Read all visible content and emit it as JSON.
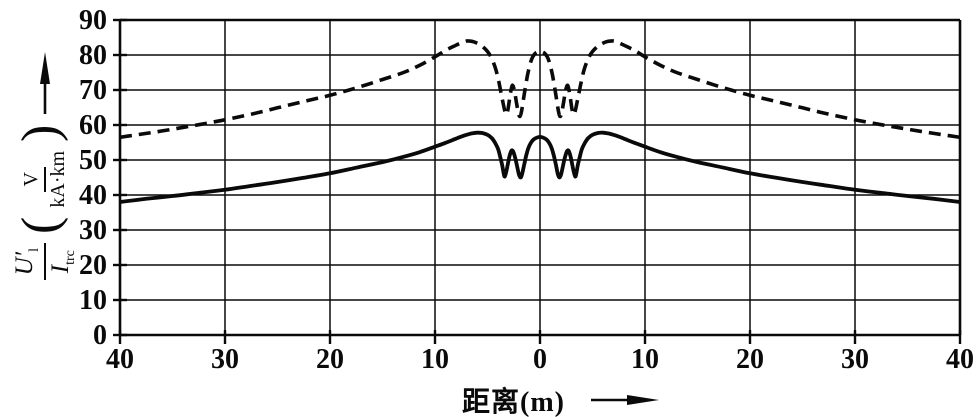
{
  "figure": {
    "background": "#ffffff",
    "ink_color": "#0a0a0a"
  },
  "y_axis_label": {
    "numerator_main": "U′",
    "numerator_sub": "l",
    "denominator_main": "I",
    "denominator_sub": "trc",
    "open_paren": "(",
    "unit_numerator": "V",
    "unit_denominator": "kA·km",
    "close_paren": ")"
  },
  "chart_data": {
    "type": "line",
    "title": "",
    "xlabel": "距离(m)",
    "ylabel": "U′l/Itrc (V/(kA·km))",
    "x_domain": [
      -40,
      40
    ],
    "ylim": [
      0,
      90
    ],
    "grid": true,
    "legend": "none",
    "x_tick_positions": [
      -40,
      -30,
      -20,
      -10,
      0,
      10,
      20,
      30,
      40
    ],
    "x_tick_labels": [
      "40",
      "30",
      "20",
      "10",
      "0",
      "10",
      "20",
      "30",
      "40"
    ],
    "y_ticks": [
      0,
      10,
      20,
      30,
      40,
      50,
      60,
      70,
      80,
      90
    ],
    "series": [
      {
        "name": "upper-dashed",
        "style": "dashed",
        "points": [
          [
            -40,
            56.5
          ],
          [
            -37.5,
            57.6
          ],
          [
            -35,
            58.8
          ],
          [
            -32.5,
            60.1
          ],
          [
            -30,
            61.5
          ],
          [
            -27.5,
            63.1
          ],
          [
            -25,
            64.9
          ],
          [
            -22.5,
            66.7
          ],
          [
            -20,
            68.5
          ],
          [
            -17.5,
            70.6
          ],
          [
            -15,
            73
          ],
          [
            -13,
            75
          ],
          [
            -11.5,
            77
          ],
          [
            -10,
            79.5
          ],
          [
            -9,
            81.3
          ],
          [
            -8,
            82.8
          ],
          [
            -7.5,
            83.5
          ],
          [
            -7,
            84
          ],
          [
            -6.5,
            83.9
          ],
          [
            -6,
            83.4
          ],
          [
            -5.5,
            82.5
          ],
          [
            -5,
            81
          ],
          [
            -4.6,
            79
          ],
          [
            -4.2,
            75.8
          ],
          [
            -3.9,
            72
          ],
          [
            -3.6,
            67.5
          ],
          [
            -3.35,
            64
          ],
          [
            -3.2,
            63
          ],
          [
            -3.05,
            64.5
          ],
          [
            -2.85,
            68.5
          ],
          [
            -2.65,
            71.3
          ],
          [
            -2.45,
            70
          ],
          [
            -2.25,
            66.5
          ],
          [
            -2.05,
            63.2
          ],
          [
            -1.9,
            62.5
          ],
          [
            -1.75,
            64
          ],
          [
            -1.55,
            67.8
          ],
          [
            -1.35,
            71.5
          ],
          [
            -1.15,
            74.8
          ],
          [
            -0.9,
            77.8
          ],
          [
            -0.65,
            79.7
          ],
          [
            -0.35,
            80.7
          ],
          [
            0,
            81
          ],
          [
            0.35,
            80.7
          ],
          [
            0.65,
            79.7
          ],
          [
            0.9,
            77.8
          ],
          [
            1.15,
            74.8
          ],
          [
            1.35,
            71.5
          ],
          [
            1.55,
            67.8
          ],
          [
            1.75,
            64
          ],
          [
            1.9,
            62.5
          ],
          [
            2.05,
            63.2
          ],
          [
            2.25,
            66.5
          ],
          [
            2.45,
            70
          ],
          [
            2.65,
            71.3
          ],
          [
            2.85,
            68.5
          ],
          [
            3.05,
            64.5
          ],
          [
            3.2,
            63
          ],
          [
            3.35,
            64
          ],
          [
            3.6,
            67.5
          ],
          [
            3.9,
            72
          ],
          [
            4.2,
            75.8
          ],
          [
            4.6,
            79
          ],
          [
            5,
            81
          ],
          [
            5.5,
            82.5
          ],
          [
            6,
            83.4
          ],
          [
            6.5,
            83.9
          ],
          [
            7,
            84
          ],
          [
            7.5,
            83.5
          ],
          [
            8,
            82.8
          ],
          [
            9,
            81.3
          ],
          [
            10,
            79.5
          ],
          [
            11.5,
            77
          ],
          [
            13,
            75
          ],
          [
            15,
            73
          ],
          [
            17.5,
            70.6
          ],
          [
            20,
            68.5
          ],
          [
            22.5,
            66.7
          ],
          [
            25,
            64.9
          ],
          [
            27.5,
            63.1
          ],
          [
            30,
            61.5
          ],
          [
            32.5,
            60.1
          ],
          [
            35,
            58.8
          ],
          [
            37.5,
            57.6
          ],
          [
            40,
            56.5
          ]
        ]
      },
      {
        "name": "lower-solid",
        "style": "solid",
        "points": [
          [
            -40,
            38
          ],
          [
            -37.5,
            38.9
          ],
          [
            -35,
            39.7
          ],
          [
            -32.5,
            40.6
          ],
          [
            -30,
            41.5
          ],
          [
            -27.5,
            42.6
          ],
          [
            -25,
            43.7
          ],
          [
            -22.5,
            44.9
          ],
          [
            -20,
            46.2
          ],
          [
            -17.5,
            47.8
          ],
          [
            -15,
            49.4
          ],
          [
            -13,
            50.9
          ],
          [
            -11.5,
            52.2
          ],
          [
            -10,
            53.8
          ],
          [
            -9,
            54.9
          ],
          [
            -8,
            56.1
          ],
          [
            -7.5,
            56.7
          ],
          [
            -7,
            57.2
          ],
          [
            -6.5,
            57.6
          ],
          [
            -6,
            57.8
          ],
          [
            -5.5,
            57.7
          ],
          [
            -5,
            57.2
          ],
          [
            -4.6,
            56.3
          ],
          [
            -4.3,
            55
          ],
          [
            -4,
            53.2
          ],
          [
            -3.8,
            51
          ],
          [
            -3.6,
            48.5
          ],
          [
            -3.45,
            46
          ],
          [
            -3.35,
            45.3
          ],
          [
            -3.2,
            46.8
          ],
          [
            -3,
            49.8
          ],
          [
            -2.85,
            51.7
          ],
          [
            -2.7,
            52.7
          ],
          [
            -2.55,
            52.4
          ],
          [
            -2.35,
            50.5
          ],
          [
            -2.15,
            47.8
          ],
          [
            -2,
            45.8
          ],
          [
            -1.85,
            45
          ],
          [
            -1.7,
            46
          ],
          [
            -1.5,
            48.8
          ],
          [
            -1.3,
            51.5
          ],
          [
            -1.1,
            53.5
          ],
          [
            -0.85,
            55
          ],
          [
            -0.6,
            55.9
          ],
          [
            -0.3,
            56.4
          ],
          [
            0,
            56.6
          ],
          [
            0.3,
            56.4
          ],
          [
            0.6,
            55.9
          ],
          [
            0.85,
            55
          ],
          [
            1.1,
            53.5
          ],
          [
            1.3,
            51.5
          ],
          [
            1.5,
            48.8
          ],
          [
            1.7,
            46
          ],
          [
            1.85,
            45
          ],
          [
            2,
            45.8
          ],
          [
            2.15,
            47.8
          ],
          [
            2.35,
            50.5
          ],
          [
            2.55,
            52.4
          ],
          [
            2.7,
            52.7
          ],
          [
            2.85,
            51.7
          ],
          [
            3,
            49.8
          ],
          [
            3.2,
            46.8
          ],
          [
            3.35,
            45.3
          ],
          [
            3.45,
            46
          ],
          [
            3.6,
            48.5
          ],
          [
            3.8,
            51
          ],
          [
            4,
            53.2
          ],
          [
            4.3,
            55
          ],
          [
            4.6,
            56.3
          ],
          [
            5,
            57.2
          ],
          [
            5.5,
            57.7
          ],
          [
            6,
            57.8
          ],
          [
            6.5,
            57.6
          ],
          [
            7,
            57.2
          ],
          [
            7.5,
            56.7
          ],
          [
            8,
            56.1
          ],
          [
            9,
            54.9
          ],
          [
            10,
            53.8
          ],
          [
            11.5,
            52.2
          ],
          [
            13,
            50.9
          ],
          [
            15,
            49.4
          ],
          [
            17.5,
            47.8
          ],
          [
            20,
            46.2
          ],
          [
            22.5,
            44.9
          ],
          [
            25,
            43.7
          ],
          [
            27.5,
            42.6
          ],
          [
            30,
            41.5
          ],
          [
            32.5,
            40.6
          ],
          [
            35,
            39.7
          ],
          [
            37.5,
            38.9
          ],
          [
            40,
            38
          ]
        ]
      }
    ]
  }
}
